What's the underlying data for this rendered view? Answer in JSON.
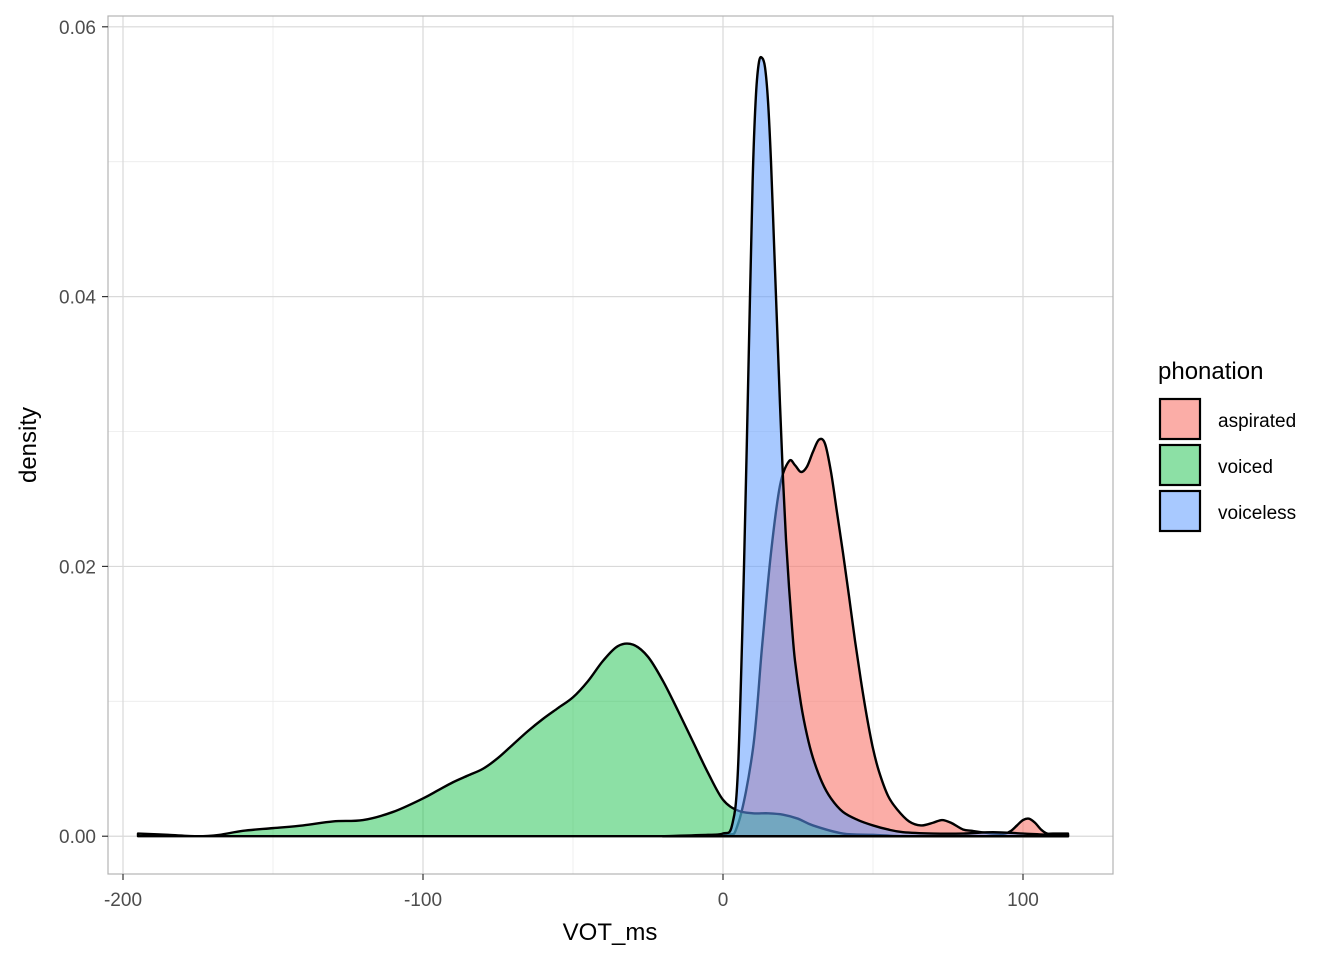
{
  "chart_data": {
    "type": "area",
    "subtype": "density",
    "title": "",
    "xlabel": "VOT_ms",
    "ylabel": "density",
    "xlim": [
      -205,
      130
    ],
    "ylim": [
      -0.0028,
      0.0608
    ],
    "x_ticks": [
      -200,
      -100,
      0,
      100
    ],
    "x_tick_labels": [
      "-200",
      "-100",
      "0",
      "100"
    ],
    "y_ticks": [
      0,
      0.02,
      0.04,
      0.06
    ],
    "y_tick_labels": [
      "0.00",
      "0.02",
      "0.04",
      "0.06"
    ],
    "grid": true,
    "legend": {
      "title": "phonation",
      "position": "right"
    },
    "series": [
      {
        "name": "aspirated",
        "color": "#F8766D",
        "fill_opacity": 0.6,
        "x": [
          -20,
          0,
          5,
          10,
          13,
          16,
          19,
          22,
          24,
          26,
          28,
          30,
          32,
          34,
          36,
          38,
          40,
          42,
          44,
          46,
          48,
          50,
          52,
          55,
          58,
          62,
          66,
          70,
          73,
          76,
          80,
          83,
          86,
          90,
          94,
          96,
          98,
          100,
          102,
          104,
          106,
          108,
          110,
          115
        ],
        "y": [
          0,
          0.0001,
          0.0009,
          0.0065,
          0.014,
          0.021,
          0.026,
          0.0278,
          0.0275,
          0.027,
          0.0274,
          0.0285,
          0.0294,
          0.0291,
          0.027,
          0.024,
          0.021,
          0.0178,
          0.0145,
          0.0115,
          0.0088,
          0.0065,
          0.0048,
          0.003,
          0.002,
          0.0011,
          0.0008,
          0.001,
          0.0012,
          0.001,
          0.0005,
          0.0004,
          0.0003,
          0.0002,
          0.0002,
          0.0004,
          0.0008,
          0.0012,
          0.0013,
          0.001,
          0.0005,
          0.0002,
          0.0002,
          0.0002
        ]
      },
      {
        "name": "voiced",
        "color": "#00BA38",
        "fill_opacity": 0.45,
        "x": [
          -195,
          -185,
          -175,
          -168,
          -160,
          -150,
          -140,
          -130,
          -120,
          -110,
          -100,
          -95,
          -90,
          -85,
          -80,
          -75,
          -70,
          -65,
          -60,
          -55,
          -50,
          -45,
          -40,
          -35,
          -30,
          -25,
          -20,
          -15,
          -10,
          -5,
          0,
          5,
          10,
          15,
          20,
          25,
          30,
          40,
          50,
          60,
          70,
          80,
          90,
          100,
          110,
          115
        ],
        "y": [
          0.0002,
          0.0001,
          0,
          0.0001,
          0.0004,
          0.0006,
          0.0008,
          0.0011,
          0.0012,
          0.0018,
          0.0028,
          0.0034,
          0.004,
          0.0045,
          0.005,
          0.0058,
          0.0068,
          0.0078,
          0.0087,
          0.0095,
          0.0103,
          0.0115,
          0.013,
          0.0141,
          0.0142,
          0.0133,
          0.0115,
          0.0093,
          0.007,
          0.0047,
          0.0027,
          0.0019,
          0.0017,
          0.0017,
          0.0016,
          0.0013,
          0.0008,
          0.0002,
          0.0001,
          0,
          0,
          0,
          0,
          0,
          0,
          0
        ]
      },
      {
        "name": "voiceless",
        "color": "#619CFF",
        "fill_opacity": 0.55,
        "x": [
          -20,
          -5,
          0,
          3,
          5,
          7,
          9,
          10,
          11,
          12,
          13,
          14,
          15,
          16,
          17,
          18,
          19,
          20,
          21,
          22,
          23,
          24,
          26,
          28,
          30,
          33,
          36,
          40,
          45,
          50,
          55,
          60,
          70,
          80,
          90,
          100,
          110,
          115
        ],
        "y": [
          0,
          0.0001,
          0.0002,
          0.0008,
          0.005,
          0.02,
          0.04,
          0.0495,
          0.055,
          0.0574,
          0.0577,
          0.057,
          0.0545,
          0.05,
          0.044,
          0.038,
          0.032,
          0.0265,
          0.022,
          0.0185,
          0.0155,
          0.013,
          0.0098,
          0.0075,
          0.0058,
          0.004,
          0.0028,
          0.0018,
          0.0012,
          0.0008,
          0.0005,
          0.0003,
          0.0002,
          0.0002,
          0.0003,
          0.0002,
          0.0001,
          0.0001
        ]
      }
    ]
  }
}
